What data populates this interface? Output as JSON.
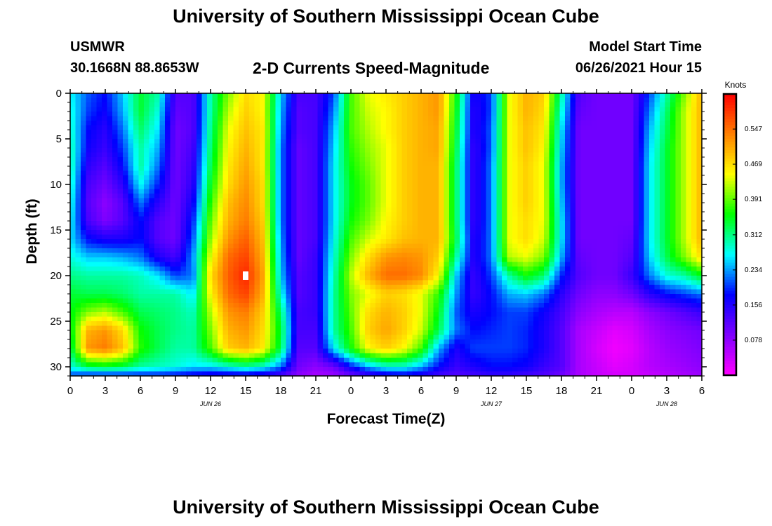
{
  "page": {
    "title_top": "University of Southern Mississippi Ocean Cube",
    "title_bottom": "University of Southern Mississippi Ocean Cube",
    "station_name": "USMWR",
    "station_coords": "30.1668N  88.8653W",
    "plot_title": "2-D Currents Speed-Magnitude",
    "model_label": "Model Start Time",
    "model_start": "06/26/2021 Hour 15"
  },
  "chart_data": {
    "type": "heatmap",
    "title": "2-D Currents Speed-Magnitude",
    "xlabel": "Forecast Time(Z)",
    "ylabel": "Depth (ft)",
    "x_tick_labels": [
      "0",
      "3",
      "6",
      "9",
      "12",
      "15",
      "18",
      "21",
      "0",
      "3",
      "6",
      "9",
      "12",
      "15",
      "18",
      "21",
      "0",
      "3",
      "6"
    ],
    "x_range_hours": [
      0,
      54
    ],
    "date_labels": [
      {
        "label": "JUN 26",
        "hour": 12
      },
      {
        "label": "JUN 27",
        "hour": 36
      },
      {
        "label": "JUN 28",
        "hour": 51
      }
    ],
    "y_ticks": [
      0,
      5,
      10,
      15,
      20,
      25,
      30
    ],
    "ylim": [
      0,
      31
    ],
    "y_reversed": true,
    "colorbar": {
      "title": "Knots",
      "ticks": [
        0.078,
        0.156,
        0.234,
        0.312,
        0.391,
        0.469,
        0.547
      ],
      "range": [
        0,
        0.625
      ],
      "colors": [
        "#ff00ff",
        "#7f00ff",
        "#0000ff",
        "#00ffff",
        "#00ff00",
        "#ffff00",
        "#ff8000",
        "#ff0000"
      ]
    },
    "marker": {
      "hour": 15,
      "depth": 20,
      "color": "#ffffff"
    },
    "hours": [
      0,
      1.5,
      3,
      4.5,
      6,
      7.5,
      9,
      10.5,
      12,
      13.5,
      15,
      16.5,
      18,
      19.5,
      21,
      22.5,
      24,
      25.5,
      27,
      28.5,
      30,
      31.5,
      33,
      34.5,
      36,
      37.5,
      39,
      40.5,
      42,
      43.5,
      45,
      46.5,
      48,
      49.5,
      51,
      52.5,
      54
    ],
    "depths": [
      0,
      2,
      4,
      6,
      8,
      10,
      12,
      14,
      16,
      18,
      20,
      22,
      24,
      26,
      28,
      30,
      31
    ],
    "speeds": [
      [
        0.27,
        0.21,
        0.18,
        0.25,
        0.34,
        0.3,
        0.12,
        0.12,
        0.3,
        0.4,
        0.47,
        0.45,
        0.25,
        0.13,
        0.13,
        0.2,
        0.38,
        0.44,
        0.46,
        0.48,
        0.5,
        0.52,
        0.36,
        0.16,
        0.2,
        0.44,
        0.5,
        0.48,
        0.3,
        0.12,
        0.1,
        0.1,
        0.1,
        0.2,
        0.3,
        0.4,
        0.5
      ],
      [
        0.28,
        0.2,
        0.17,
        0.24,
        0.34,
        0.28,
        0.11,
        0.12,
        0.3,
        0.42,
        0.48,
        0.45,
        0.24,
        0.12,
        0.13,
        0.22,
        0.38,
        0.43,
        0.45,
        0.48,
        0.5,
        0.52,
        0.35,
        0.15,
        0.2,
        0.44,
        0.5,
        0.47,
        0.28,
        0.11,
        0.1,
        0.1,
        0.1,
        0.22,
        0.32,
        0.42,
        0.5
      ],
      [
        0.29,
        0.18,
        0.15,
        0.22,
        0.32,
        0.26,
        0.1,
        0.12,
        0.31,
        0.44,
        0.49,
        0.46,
        0.23,
        0.12,
        0.13,
        0.24,
        0.38,
        0.42,
        0.45,
        0.48,
        0.5,
        0.51,
        0.34,
        0.15,
        0.21,
        0.44,
        0.49,
        0.46,
        0.26,
        0.1,
        0.1,
        0.1,
        0.1,
        0.24,
        0.33,
        0.42,
        0.5
      ],
      [
        0.3,
        0.17,
        0.14,
        0.2,
        0.3,
        0.24,
        0.1,
        0.13,
        0.32,
        0.45,
        0.5,
        0.46,
        0.22,
        0.11,
        0.13,
        0.25,
        0.37,
        0.41,
        0.44,
        0.48,
        0.5,
        0.51,
        0.33,
        0.14,
        0.21,
        0.44,
        0.49,
        0.45,
        0.25,
        0.1,
        0.1,
        0.1,
        0.1,
        0.25,
        0.34,
        0.42,
        0.5
      ],
      [
        0.3,
        0.15,
        0.12,
        0.18,
        0.3,
        0.22,
        0.1,
        0.14,
        0.33,
        0.46,
        0.51,
        0.46,
        0.22,
        0.11,
        0.13,
        0.26,
        0.36,
        0.4,
        0.44,
        0.48,
        0.5,
        0.5,
        0.32,
        0.14,
        0.22,
        0.44,
        0.48,
        0.44,
        0.24,
        0.1,
        0.1,
        0.1,
        0.1,
        0.26,
        0.34,
        0.42,
        0.5
      ],
      [
        0.29,
        0.13,
        0.1,
        0.15,
        0.27,
        0.19,
        0.1,
        0.15,
        0.35,
        0.47,
        0.52,
        0.47,
        0.22,
        0.11,
        0.13,
        0.26,
        0.35,
        0.39,
        0.44,
        0.48,
        0.5,
        0.5,
        0.32,
        0.14,
        0.22,
        0.44,
        0.48,
        0.44,
        0.24,
        0.1,
        0.1,
        0.1,
        0.1,
        0.26,
        0.34,
        0.42,
        0.5
      ],
      [
        0.28,
        0.12,
        0.08,
        0.12,
        0.22,
        0.15,
        0.1,
        0.17,
        0.37,
        0.49,
        0.53,
        0.47,
        0.22,
        0.11,
        0.13,
        0.26,
        0.35,
        0.39,
        0.44,
        0.48,
        0.5,
        0.5,
        0.32,
        0.14,
        0.22,
        0.44,
        0.48,
        0.44,
        0.25,
        0.1,
        0.1,
        0.1,
        0.1,
        0.26,
        0.34,
        0.42,
        0.5
      ],
      [
        0.27,
        0.13,
        0.09,
        0.12,
        0.18,
        0.12,
        0.1,
        0.19,
        0.39,
        0.5,
        0.54,
        0.48,
        0.22,
        0.11,
        0.13,
        0.26,
        0.36,
        0.4,
        0.45,
        0.48,
        0.5,
        0.5,
        0.32,
        0.14,
        0.22,
        0.44,
        0.47,
        0.44,
        0.26,
        0.1,
        0.1,
        0.1,
        0.1,
        0.26,
        0.34,
        0.42,
        0.5
      ],
      [
        0.26,
        0.18,
        0.16,
        0.16,
        0.18,
        0.12,
        0.1,
        0.21,
        0.41,
        0.52,
        0.56,
        0.49,
        0.23,
        0.11,
        0.13,
        0.27,
        0.38,
        0.43,
        0.46,
        0.49,
        0.5,
        0.5,
        0.33,
        0.15,
        0.22,
        0.44,
        0.47,
        0.43,
        0.26,
        0.1,
        0.1,
        0.1,
        0.11,
        0.26,
        0.34,
        0.42,
        0.5
      ],
      [
        0.28,
        0.25,
        0.25,
        0.24,
        0.22,
        0.16,
        0.13,
        0.23,
        0.44,
        0.55,
        0.58,
        0.5,
        0.24,
        0.11,
        0.14,
        0.28,
        0.4,
        0.47,
        0.52,
        0.53,
        0.52,
        0.48,
        0.3,
        0.15,
        0.22,
        0.42,
        0.44,
        0.4,
        0.24,
        0.11,
        0.1,
        0.1,
        0.12,
        0.25,
        0.33,
        0.4,
        0.47
      ],
      [
        0.31,
        0.3,
        0.3,
        0.3,
        0.29,
        0.26,
        0.2,
        0.22,
        0.47,
        0.56,
        0.6,
        0.51,
        0.25,
        0.12,
        0.14,
        0.29,
        0.42,
        0.5,
        0.55,
        0.55,
        0.53,
        0.45,
        0.25,
        0.14,
        0.2,
        0.3,
        0.36,
        0.32,
        0.19,
        0.12,
        0.1,
        0.1,
        0.14,
        0.22,
        0.28,
        0.3,
        0.35
      ],
      [
        0.34,
        0.33,
        0.33,
        0.32,
        0.3,
        0.3,
        0.3,
        0.26,
        0.45,
        0.55,
        0.58,
        0.5,
        0.28,
        0.12,
        0.14,
        0.3,
        0.4,
        0.44,
        0.48,
        0.47,
        0.44,
        0.37,
        0.23,
        0.14,
        0.18,
        0.24,
        0.25,
        0.22,
        0.15,
        0.1,
        0.08,
        0.08,
        0.1,
        0.15,
        0.18,
        0.2,
        0.22
      ],
      [
        0.35,
        0.4,
        0.42,
        0.38,
        0.33,
        0.32,
        0.31,
        0.29,
        0.42,
        0.52,
        0.54,
        0.48,
        0.32,
        0.13,
        0.14,
        0.3,
        0.39,
        0.47,
        0.5,
        0.48,
        0.44,
        0.35,
        0.21,
        0.16,
        0.18,
        0.2,
        0.2,
        0.17,
        0.13,
        0.08,
        0.06,
        0.05,
        0.05,
        0.08,
        0.1,
        0.12,
        0.14
      ],
      [
        0.34,
        0.5,
        0.52,
        0.47,
        0.36,
        0.33,
        0.31,
        0.3,
        0.4,
        0.5,
        0.52,
        0.47,
        0.34,
        0.13,
        0.13,
        0.3,
        0.38,
        0.48,
        0.51,
        0.48,
        0.43,
        0.33,
        0.22,
        0.18,
        0.19,
        0.2,
        0.19,
        0.16,
        0.12,
        0.06,
        0.04,
        0.02,
        0.03,
        0.06,
        0.08,
        0.09,
        0.1
      ],
      [
        0.32,
        0.52,
        0.54,
        0.49,
        0.37,
        0.33,
        0.3,
        0.3,
        0.38,
        0.48,
        0.5,
        0.46,
        0.33,
        0.12,
        0.12,
        0.26,
        0.36,
        0.45,
        0.48,
        0.45,
        0.38,
        0.24,
        0.16,
        0.2,
        0.2,
        0.2,
        0.19,
        0.16,
        0.12,
        0.06,
        0.03,
        0.01,
        0.02,
        0.05,
        0.07,
        0.08,
        0.09
      ],
      [
        0.28,
        0.33,
        0.34,
        0.33,
        0.3,
        0.29,
        0.28,
        0.26,
        0.26,
        0.28,
        0.3,
        0.28,
        0.22,
        0.1,
        0.08,
        0.1,
        0.18,
        0.24,
        0.28,
        0.28,
        0.24,
        0.18,
        0.14,
        0.16,
        0.18,
        0.18,
        0.17,
        0.14,
        0.12,
        0.06,
        0.04,
        0.02,
        0.03,
        0.05,
        0.06,
        0.07,
        0.08
      ],
      [
        0.2,
        0.18,
        0.18,
        0.18,
        0.18,
        0.18,
        0.17,
        0.16,
        0.15,
        0.15,
        0.15,
        0.14,
        0.12,
        0.08,
        0.06,
        0.07,
        0.1,
        0.13,
        0.15,
        0.16,
        0.15,
        0.13,
        0.12,
        0.13,
        0.14,
        0.14,
        0.13,
        0.12,
        0.1,
        0.06,
        0.04,
        0.03,
        0.03,
        0.04,
        0.05,
        0.06,
        0.07
      ]
    ]
  }
}
